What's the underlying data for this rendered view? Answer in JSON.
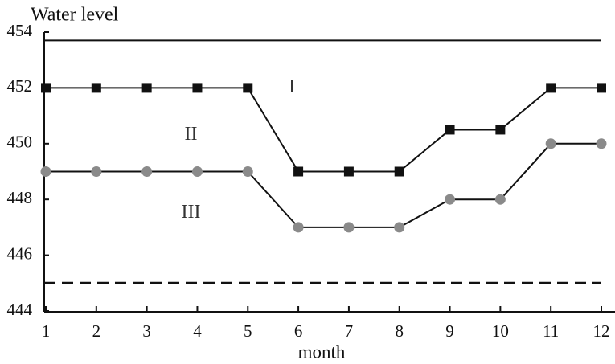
{
  "chart_data": {
    "type": "line",
    "title": "Water level",
    "x_label": "month",
    "x": [
      1,
      2,
      3,
      4,
      5,
      6,
      7,
      8,
      9,
      10,
      11,
      12
    ],
    "xlim": [
      1,
      12
    ],
    "xticks": [
      1,
      2,
      3,
      4,
      5,
      6,
      7,
      8,
      9,
      10,
      11,
      12
    ],
    "ylim": [
      444,
      454
    ],
    "yticks": [
      444,
      446,
      448,
      450,
      452,
      454
    ],
    "series": [
      {
        "color": "#111111",
        "marker": "square",
        "values": [
          452,
          452,
          452,
          452,
          452,
          449,
          449,
          449,
          450.5,
          450.5,
          452,
          452
        ]
      },
      {
        "color": "#8a8a8a",
        "marker": "circle",
        "values": [
          449,
          449,
          449,
          449,
          449,
          447,
          447,
          447,
          448,
          448,
          450,
          450
        ]
      }
    ],
    "reference_lines": [
      {
        "value": 453.7,
        "style": "solid"
      },
      {
        "value": 445,
        "style": "dashed"
      }
    ],
    "annotations": [
      {
        "text": "I",
        "x": 6,
        "y": 452
      },
      {
        "text": "II",
        "x": 4,
        "y": 450.3
      },
      {
        "text": "III",
        "x": 4,
        "y": 447.5
      }
    ]
  }
}
